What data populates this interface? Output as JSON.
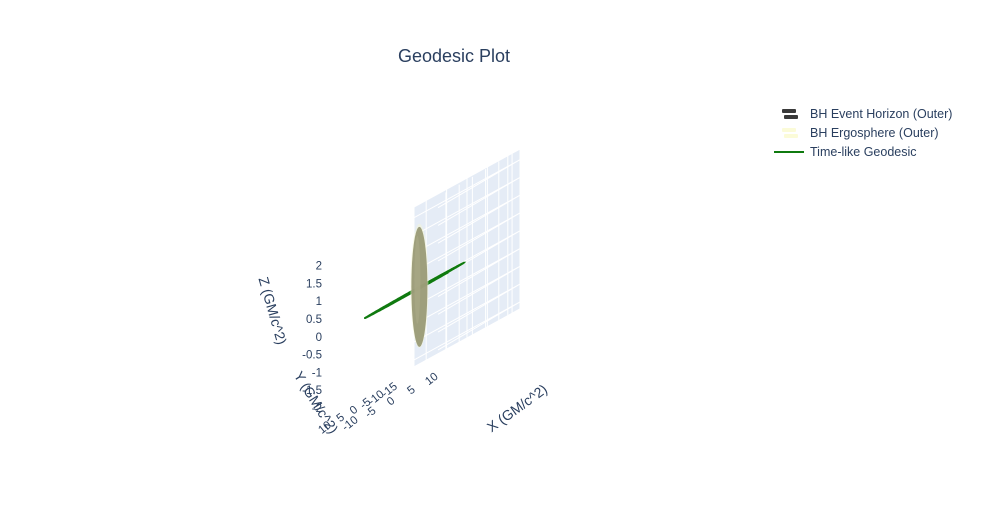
{
  "chart_data": {
    "type": "scatter3d",
    "title": "Geodesic Plot",
    "axes": {
      "x": {
        "label": "X (GM/c^2)",
        "ticks": [
          "-10",
          "-5",
          "0",
          "5",
          "10"
        ],
        "range": [
          -13,
          13
        ]
      },
      "y": {
        "label": "Y (GM/c^2)",
        "ticks": [
          "-15",
          "-10",
          "-5",
          "0",
          "5",
          "10"
        ],
        "range": [
          -18,
          13
        ]
      },
      "z": {
        "label": "Z (GM/c^2)",
        "ticks": [
          "-2",
          "-1.5",
          "-1",
          "-0.5",
          "0",
          "0.5",
          "1",
          "1.5",
          "2"
        ],
        "range": [
          -2.2,
          2.3
        ]
      }
    },
    "grid": true,
    "legend_position": "top-right",
    "series": [
      {
        "name": "BH Event Horizon (Outer)",
        "kind": "surface",
        "color": "#2f3d2a"
      },
      {
        "name": "BH Ergosphere (Outer)",
        "kind": "surface",
        "color": "#f6f7c8"
      },
      {
        "name": "Time-like Geodesic",
        "kind": "line",
        "color": "#0f7a0f",
        "shape": "spiral in the z=0 plane from r≈12 inward to r≈2"
      }
    ]
  },
  "legend": {
    "items": [
      {
        "label": "BH Event Horizon (Outer)",
        "icon": "surface-swatch-icon",
        "color": "#3a3a3a"
      },
      {
        "label": "BH Ergosphere (Outer)",
        "icon": "surface-swatch-icon",
        "color": "#fbfbd8"
      },
      {
        "label": "Time-like Geodesic",
        "icon": "line-swatch-icon",
        "color": "#0f7a0f"
      }
    ]
  },
  "colors": {
    "scene_background": "#e5ecf6",
    "grid": "#ffffff",
    "text": "#2a3f5f"
  }
}
